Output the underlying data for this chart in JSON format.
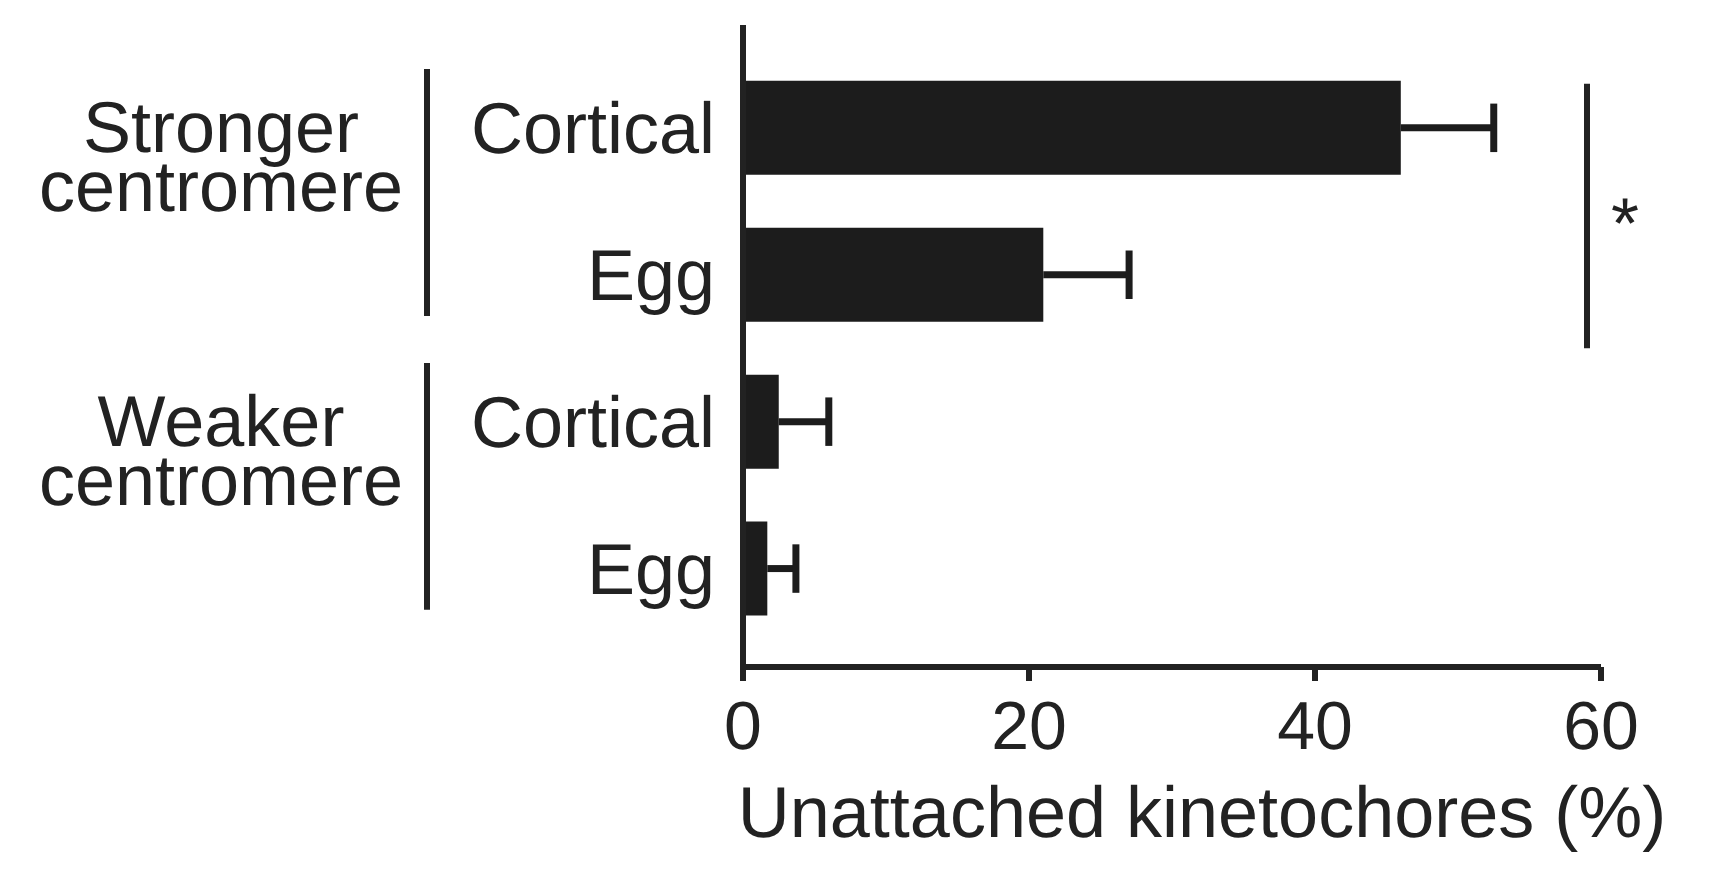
{
  "chart_data": {
    "type": "bar",
    "orientation": "horizontal",
    "categories": [
      "Cortical",
      "Egg",
      "Cortical",
      "Egg"
    ],
    "values": [
      46,
      21,
      2.5,
      1.7
    ],
    "errors": [
      [
        46,
        52.5
      ],
      [
        21,
        27
      ],
      [
        2.5,
        6
      ],
      [
        1.7,
        3.7
      ]
    ],
    "color": "#1c1c1c",
    "xlim": [
      0,
      60
    ],
    "xticks": [
      0,
      20,
      40,
      60
    ],
    "xlabel": "Unattached kinetochores (%)",
    "annotations": [
      "Stronger centromere",
      "Weaker centromere",
      "*"
    ],
    "grid": false
  }
}
